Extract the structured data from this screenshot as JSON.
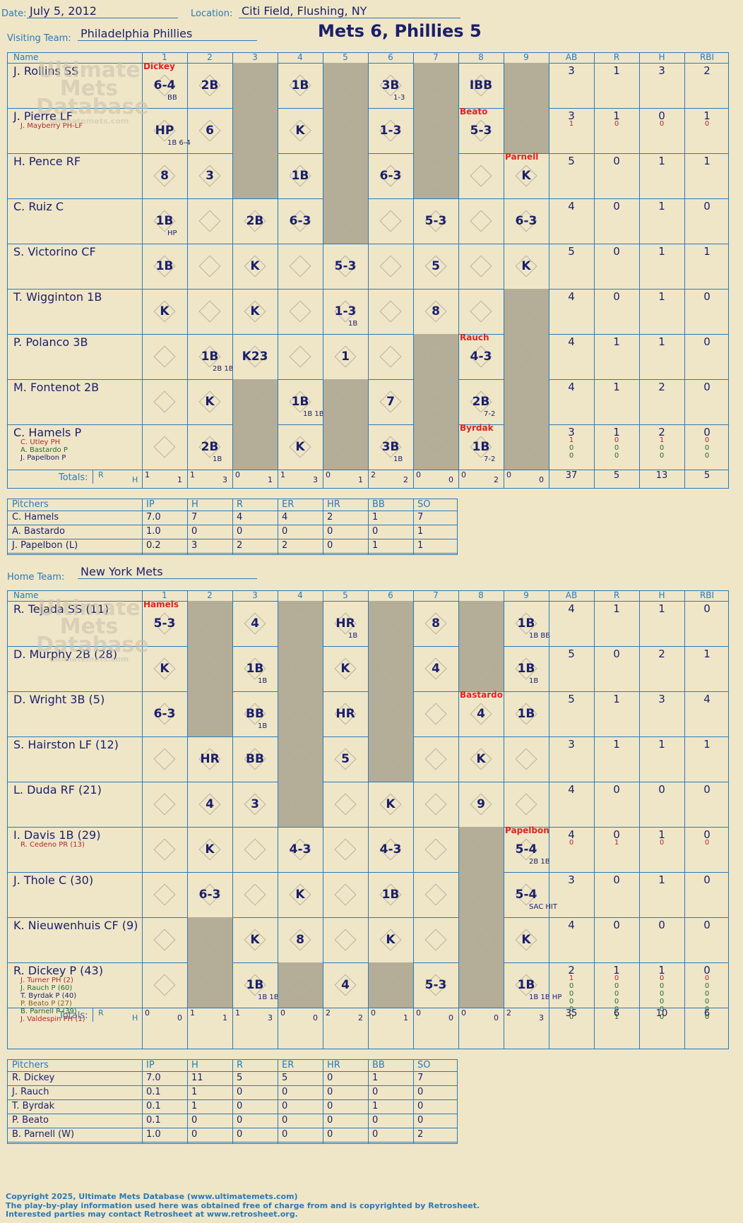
{
  "header": {
    "date_label": "Date:",
    "date": "July 5, 2012",
    "location_label": "Location:",
    "location": "Citi Field, Flushing, NY",
    "visiting_label": "Visiting Team:",
    "visiting_team": "Philadelphia Phillies",
    "score_title": "Mets 6, Phillies 5",
    "home_label": "Home Team:",
    "home_team": "New York Mets"
  },
  "columns": [
    "Name",
    "1",
    "2",
    "3",
    "4",
    "5",
    "6",
    "7",
    "8",
    "9",
    "AB",
    "R",
    "H",
    "RBI"
  ],
  "visitors": {
    "shaded_cols": [
      3,
      5,
      7,
      9
    ],
    "extra_shade": [
      [
        1,
        7
      ],
      [
        1,
        8
      ],
      [
        1,
        9
      ],
      [
        2,
        7
      ],
      [
        3,
        7
      ],
      [
        4,
        2
      ],
      [
        4,
        6
      ],
      [
        4,
        8
      ],
      [
        4,
        9
      ],
      [
        5,
        2
      ],
      [
        5,
        7
      ],
      [
        5,
        8
      ],
      [
        5,
        9
      ],
      [
        6,
        2
      ],
      [
        6,
        7
      ],
      [
        6,
        9
      ],
      [
        6,
        3
      ],
      [
        6,
        4
      ],
      [
        7,
        1
      ],
      [
        7,
        4
      ],
      [
        7,
        6
      ],
      [
        7,
        8
      ],
      [
        7,
        9
      ],
      [
        8,
        1
      ],
      [
        8,
        3
      ],
      [
        8,
        5
      ],
      [
        8,
        6
      ],
      [
        8,
        9
      ],
      [
        0,
        3
      ],
      [
        0,
        5
      ],
      [
        0,
        7
      ],
      [
        0,
        9
      ]
    ],
    "rows": [
      {
        "name": "J. Rollins SS",
        "subs": [],
        "ab": "3",
        "r": "1",
        "h": "3",
        "rbi": "2",
        "cells": {
          "1": "6-4 BB",
          "2": "2B",
          "4": "1B",
          "6": "3B 1-3",
          "8": "IBB"
        },
        "note": {
          "1": "Dickey"
        }
      },
      {
        "name": "J. Pierre LF",
        "subs": [
          {
            "t": "J. Mayberry PH-LF",
            "c": "#b02a2a"
          }
        ],
        "ab": "3",
        "r": "1",
        "h": "0",
        "rbi": "1",
        "sub_stats": [
          [
            "1",
            "0",
            "0",
            "0"
          ]
        ],
        "cells": {
          "1": "HP 1B 6-4",
          "2": "6",
          "4": "K",
          "6": "1-3",
          "8": "5-3"
        },
        "note": {
          "8": "Beato"
        }
      },
      {
        "name": "H. Pence RF",
        "subs": [],
        "ab": "5",
        "r": "0",
        "h": "1",
        "rbi": "1",
        "cells": {
          "1": "8",
          "2": "3",
          "4": "1B",
          "6": "6-3",
          "9": "K"
        },
        "note": {
          "9": "Parnell"
        }
      },
      {
        "name": "C. Ruiz C",
        "subs": [],
        "ab": "4",
        "r": "0",
        "h": "1",
        "rbi": "0",
        "cells": {
          "1": "1B HP",
          "3": "2B",
          "4": "6-3",
          "7": "5-3",
          "9": "6-3"
        }
      },
      {
        "name": "S. Victorino CF",
        "subs": [],
        "ab": "5",
        "r": "0",
        "h": "1",
        "rbi": "1",
        "cells": {
          "1": "1B",
          "3": "K",
          "5": "5-3",
          "7": "5",
          "9": "K"
        }
      },
      {
        "name": "T. Wigginton 1B",
        "subs": [],
        "ab": "4",
        "r": "0",
        "h": "1",
        "rbi": "0",
        "cells": {
          "1": "K",
          "3": "K",
          "5": "1-3 1B",
          "7": "8"
        }
      },
      {
        "name": "P. Polanco 3B",
        "subs": [],
        "ab": "4",
        "r": "1",
        "h": "1",
        "rbi": "0",
        "cells": {
          "2": "1B 2B 1B",
          "3": "K23",
          "5": "1",
          "8": "4-3"
        },
        "note": {
          "8": "Rauch"
        }
      },
      {
        "name": "M. Fontenot 2B",
        "subs": [],
        "ab": "4",
        "r": "1",
        "h": "2",
        "rbi": "0",
        "cells": {
          "2": "K",
          "4": "1B 1B 1B",
          "6": "7",
          "8": "2B 7-2"
        }
      },
      {
        "name": "C. Hamels P",
        "subs": [
          {
            "t": "C. Utley PH",
            "c": "#b02a2a"
          },
          {
            "t": "A. Bastardo P",
            "c": "#2a6a2a"
          },
          {
            "t": "J. Papelbon P",
            "c": "#1a1f6b"
          }
        ],
        "ab": "3",
        "r": "1",
        "h": "2",
        "rbi": "0",
        "sub_stats": [
          [
            "1",
            "0",
            "1",
            "0"
          ],
          [
            "0",
            "0",
            "0",
            "0"
          ],
          [
            "0",
            "0",
            "0",
            "0"
          ]
        ],
        "cells": {
          "2": "2B 1B",
          "4": "K",
          "6": "3B 1B",
          "8": "1B 7-2"
        },
        "note": {
          "8": "Byrdak"
        }
      }
    ],
    "totals_label": "Totals:",
    "rh": [
      "R",
      "H"
    ],
    "inning_totals": [
      [
        "1",
        "1"
      ],
      [
        "1",
        "3"
      ],
      [
        "0",
        "1"
      ],
      [
        "1",
        "3"
      ],
      [
        "0",
        "1"
      ],
      [
        "2",
        "2"
      ],
      [
        "0",
        "0"
      ],
      [
        "0",
        "2"
      ],
      [
        "0",
        "0"
      ]
    ],
    "totals": [
      "37",
      "5",
      "13",
      "5"
    ]
  },
  "visitor_pitchers": {
    "headers": [
      "Pitchers",
      "IP",
      "H",
      "R",
      "ER",
      "HR",
      "BB",
      "SO"
    ],
    "rows": [
      [
        "C. Hamels",
        "7.0",
        "7",
        "4",
        "4",
        "2",
        "1",
        "7"
      ],
      [
        "A. Bastardo",
        "1.0",
        "0",
        "0",
        "0",
        "0",
        "0",
        "1"
      ],
      [
        "J. Papelbon (L)",
        "0.2",
        "3",
        "2",
        "2",
        "0",
        "1",
        "1"
      ]
    ]
  },
  "home": {
    "rows": [
      {
        "name": "R. Tejada SS (11)",
        "subs": [],
        "ab": "4",
        "r": "1",
        "h": "1",
        "rbi": "0",
        "cells": {
          "1": "5-3",
          "3": "4",
          "5": "HR 1B",
          "7": "8",
          "9": "1B 1B BB"
        },
        "note": {
          "1": "Hamels"
        }
      },
      {
        "name": "D. Murphy 2B (28)",
        "subs": [],
        "ab": "5",
        "r": "0",
        "h": "2",
        "rbi": "1",
        "cells": {
          "1": "K",
          "3": "1B 1B",
          "5": "K",
          "7": "4",
          "9": "1B 1B"
        }
      },
      {
        "name": "D. Wright 3B (5)",
        "subs": [],
        "ab": "5",
        "r": "1",
        "h": "3",
        "rbi": "4",
        "cells": {
          "1": "6-3",
          "3": "BB 1B",
          "5": "HR",
          "8": "4",
          "9": "1B"
        },
        "note": {
          "8": "Bastardo"
        }
      },
      {
        "name": "S. Hairston LF (12)",
        "subs": [],
        "ab": "3",
        "r": "1",
        "h": "1",
        "rbi": "1",
        "cells": {
          "2": "HR",
          "3": "BB",
          "5": "5",
          "8": "K"
        }
      },
      {
        "name": "L. Duda RF (21)",
        "subs": [],
        "ab": "4",
        "r": "0",
        "h": "0",
        "rbi": "0",
        "cells": {
          "2": "4",
          "3": "3",
          "6": "K",
          "8": "9"
        }
      },
      {
        "name": "I. Davis 1B (29)",
        "subs": [
          {
            "t": "R. Cedeno PR (13)",
            "c": "#b02a2a"
          }
        ],
        "ab": "4",
        "r": "0",
        "h": "1",
        "rbi": "0",
        "sub_stats": [
          [
            "0",
            "1",
            "0",
            "0"
          ]
        ],
        "cells": {
          "2": "K",
          "4": "4-3",
          "6": "4-3",
          "9": "5-4 2B 1B"
        },
        "note": {
          "9": "Papelbon"
        }
      },
      {
        "name": "J. Thole C (30)",
        "subs": [],
        "ab": "3",
        "r": "0",
        "h": "1",
        "rbi": "0",
        "cells": {
          "2": "6-3",
          "4": "K",
          "6": "1B",
          "9": "5-4 SAC HIT"
        }
      },
      {
        "name": "K. Nieuwenhuis CF (9)",
        "subs": [],
        "ab": "4",
        "r": "0",
        "h": "0",
        "rbi": "0",
        "cells": {
          "3": "K",
          "4": "8",
          "6": "K",
          "9": "K"
        }
      },
      {
        "name": "R. Dickey P (43)",
        "subs": [
          {
            "t": "J. Turner PH (2)",
            "c": "#b02a2a"
          },
          {
            "t": "J. Rauch P (60)",
            "c": "#2a6a2a"
          },
          {
            "t": "T. Byrdak P (40)",
            "c": "#1a1f6b"
          },
          {
            "t": "P. Beato P (27)",
            "c": "#8a5a1a"
          },
          {
            "t": "B. Parnell P (39)",
            "c": "#2a6a2a"
          },
          {
            "t": "J. Valdespin PH (1)",
            "c": "#b02a2a"
          }
        ],
        "ab": "2",
        "r": "1",
        "h": "1",
        "rbi": "0",
        "sub_stats": [
          [
            "1",
            "0",
            "0",
            "0"
          ],
          [
            "0",
            "0",
            "0",
            "0"
          ],
          [
            "0",
            "0",
            "0",
            "0"
          ],
          [
            "0",
            "0",
            "0",
            "0"
          ],
          [
            "0",
            "0",
            "0",
            "0"
          ],
          [
            "0",
            "1",
            "0",
            "0"
          ]
        ],
        "cells": {
          "3": "1B 1B 1B",
          "5": "4",
          "7": "5-3",
          "9": "1B 1B 1B HP"
        }
      }
    ],
    "totals_label": "Totals:",
    "rh": [
      "R",
      "H"
    ],
    "inning_totals": [
      [
        "0",
        "0"
      ],
      [
        "1",
        "1"
      ],
      [
        "1",
        "3"
      ],
      [
        "0",
        "0"
      ],
      [
        "2",
        "2"
      ],
      [
        "0",
        "1"
      ],
      [
        "0",
        "0"
      ],
      [
        "0",
        "0"
      ],
      [
        "2",
        "3"
      ]
    ],
    "totals": [
      "35",
      "6",
      "10",
      "6"
    ]
  },
  "home_pitchers": {
    "headers": [
      "Pitchers",
      "IP",
      "H",
      "R",
      "ER",
      "HR",
      "BB",
      "SO"
    ],
    "rows": [
      [
        "R. Dickey",
        "7.0",
        "11",
        "5",
        "5",
        "0",
        "1",
        "7"
      ],
      [
        "J. Rauch",
        "0.1",
        "1",
        "0",
        "0",
        "0",
        "0",
        "0"
      ],
      [
        "T. Byrdak",
        "0.1",
        "1",
        "0",
        "0",
        "0",
        "1",
        "0"
      ],
      [
        "P. Beato",
        "0.1",
        "0",
        "0",
        "0",
        "0",
        "0",
        "0"
      ],
      [
        "B. Parnell (W)",
        "1.0",
        "0",
        "0",
        "0",
        "0",
        "0",
        "2"
      ]
    ]
  },
  "watermark": {
    "line1": "Ultimate",
    "line2": "Mets",
    "line3": "Database",
    "url": "ultimatemets.com"
  },
  "footer": {
    "line1": "Copyright 2025, Ultimate Mets Database (www.ultimatemets.com)",
    "line2": "The play-by-play information used here was obtained free of charge from and is copyrighted by Retrosheet.",
    "line3": "Interested parties may contact Retrosheet at www.retrosheet.org."
  }
}
